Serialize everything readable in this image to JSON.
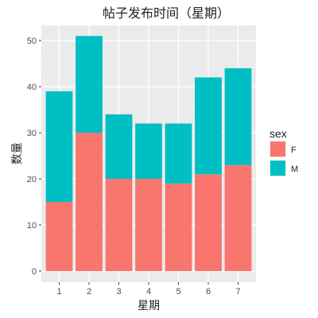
{
  "chart_data": {
    "type": "bar",
    "stacked": true,
    "title": "帖子发布时间（星期）",
    "xlabel": "星期",
    "ylabel": "数量",
    "categories": [
      "1",
      "2",
      "3",
      "4",
      "5",
      "6",
      "7"
    ],
    "series": [
      {
        "name": "F",
        "color": "#F8766D",
        "values": [
          15,
          30,
          20,
          20,
          19,
          21,
          23
        ]
      },
      {
        "name": "M",
        "color": "#00BFC4",
        "values": [
          24,
          21,
          14,
          12,
          13,
          21,
          21
        ]
      }
    ],
    "ylim": [
      0,
      52
    ],
    "yticks": [
      "0",
      "10",
      "20",
      "30",
      "40",
      "50"
    ],
    "grid": true,
    "panel_color": "#EBEBEB",
    "legend": {
      "title": "sex",
      "position": "right",
      "entries": [
        "F",
        "M"
      ]
    }
  }
}
